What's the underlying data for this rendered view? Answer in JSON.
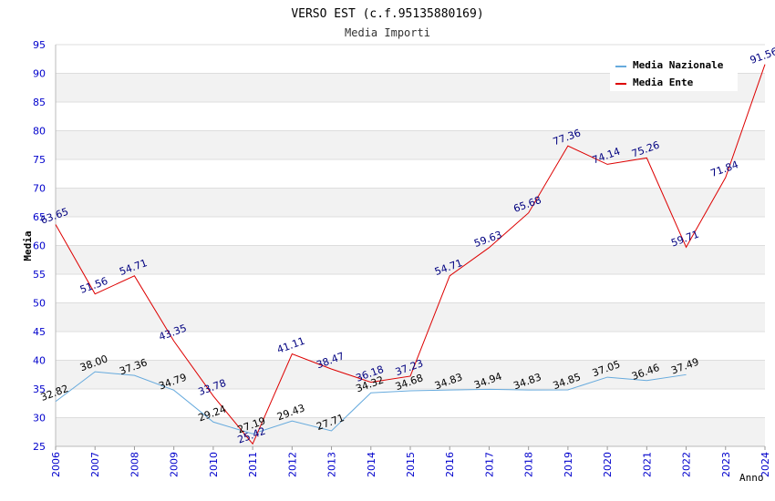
{
  "chart_data": {
    "type": "line",
    "title": "VERSO EST (c.f.95135880169)",
    "subtitle": "Media Importi",
    "xlabel": "Anno",
    "ylabel": "Media",
    "ylim": [
      25,
      95
    ],
    "ytick_step": 5,
    "grid": true,
    "legend_position": "top-right",
    "x": [
      "2006",
      "2007",
      "2008",
      "2009",
      "2010",
      "2011",
      "2012",
      "2013",
      "2014",
      "2015",
      "2016",
      "2017",
      "2018",
      "2019",
      "2020",
      "2021",
      "2022",
      "2023",
      "2024"
    ],
    "series": [
      {
        "name": "Media Nazionale",
        "color": "#66aadd",
        "label_color": "#000000",
        "values": [
          32.82,
          38.0,
          37.36,
          34.79,
          29.24,
          27.19,
          29.43,
          27.71,
          34.32,
          34.68,
          34.83,
          34.94,
          34.83,
          34.85,
          37.05,
          36.46,
          37.49,
          null,
          null
        ],
        "labels": [
          "32.82",
          "38.00",
          "37.36",
          "34.79",
          "29.24",
          "27.19",
          "29.43",
          "27.71",
          "34.32",
          "34.68",
          "34.83",
          "34.94",
          "34.83",
          "34.85",
          "37.05",
          "36.46",
          "37.49",
          null,
          null
        ]
      },
      {
        "name": "Media Ente",
        "color": "#dd0000",
        "label_color": "#000080",
        "values": [
          63.65,
          51.56,
          54.71,
          43.35,
          33.78,
          25.42,
          41.11,
          38.47,
          36.18,
          37.23,
          54.71,
          59.63,
          65.68,
          77.36,
          74.14,
          75.26,
          59.71,
          71.84,
          91.56
        ],
        "labels": [
          "63.65",
          "51.56",
          "54.71",
          "43.35",
          "33.78",
          "25.42",
          "41.11",
          "38.47",
          "36.18",
          "37.23",
          "54.71",
          "59.63",
          "65.68",
          "77.36",
          "74.14",
          "75.26",
          "59.71",
          "71.84",
          "91.56"
        ]
      }
    ]
  },
  "colors": {
    "axis_tick_text": "#0000cc",
    "band": "#f2f2f2",
    "gridline": "#dddddd"
  }
}
